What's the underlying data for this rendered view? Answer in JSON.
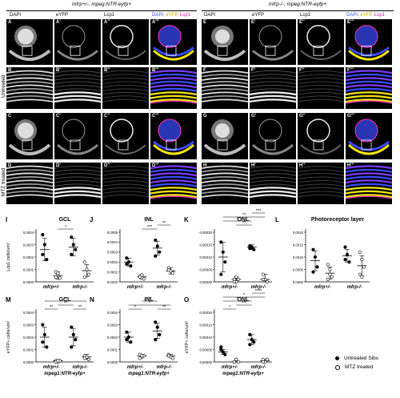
{
  "figure": {
    "genotype_left": "mfrp+/-; mpeg:NTR-eyfp+",
    "genotype_right": "mfrp-/-; mpeg:NTR-eyfp+",
    "column_headers": [
      "DAPI",
      "eYFP",
      "Lcp1",
      "DAPI, eYFP, Lcp1"
    ],
    "merge_label": {
      "dapi": "DAPI,",
      "eyfp": "eYFP,",
      "lcp1": "Lcp1"
    },
    "row_labels": {
      "untreated": "Untreated",
      "mtz": "MTZ treated"
    },
    "panel_labels": [
      [
        "A",
        "A'",
        "A''",
        "A'''",
        "E",
        "E'",
        "E''",
        "E'''"
      ],
      [
        "B",
        "B'",
        "B''",
        "B'''",
        "F",
        "F'",
        "F''",
        "F'''"
      ],
      [
        "C",
        "C'",
        "C''",
        "C'''",
        "G",
        "G'",
        "G''",
        "G'''"
      ],
      [
        "D",
        "D'",
        "D''",
        "D'''",
        "H",
        "H'",
        "H''",
        "H'''"
      ]
    ],
    "colors": {
      "dapi": "#3a4bff",
      "eyfp": "#f2e60a",
      "lcp1": "#ff33cc"
    }
  },
  "legend": {
    "filled": "Untreated Sibs",
    "open": "MTZ treated"
  },
  "chart_data": [
    {
      "id": "I",
      "type": "scatter",
      "title": "GCL",
      "ylabel": "Lcp1 cells/um²",
      "yticks": [
        "0.0000",
        "0.0001",
        "0.0002",
        "0.0003",
        "0.0004"
      ],
      "ylim": [
        0,
        0.0004
      ],
      "categories": [
        "mfrp+/-",
        "mfrp-/-"
      ],
      "series": [
        {
          "group": 0,
          "filled": true,
          "points": [
            0.00038,
            0.0003,
            0.00018,
            0.00022
          ],
          "mean": 0.00026,
          "sd": 9e-05
        },
        {
          "group": 0,
          "filled": false,
          "points": [
            8e-05,
            6e-05,
            3e-05,
            4e-05,
            7e-05
          ],
          "mean": 5e-05,
          "sd": 3e-05
        },
        {
          "group": 1,
          "filled": true,
          "points": [
            0.00036,
            0.0003,
            0.00026,
            0.00022
          ],
          "mean": 0.00028,
          "sd": 7e-05
        },
        {
          "group": 1,
          "filled": false,
          "points": [
            0.00016,
            0.0001,
            6e-05,
            4e-05
          ],
          "mean": 9e-05,
          "sd": 5e-05
        }
      ],
      "sig": [
        {
          "from": 1,
          "to": 2,
          "label": "*",
          "level": 0
        }
      ]
    },
    {
      "id": "J",
      "type": "scatter",
      "title": "INL",
      "ylabel": "",
      "yticks": [
        "0.0000",
        "0.0001",
        "0.0002",
        "0.0003",
        "0.0004",
        "0.0005"
      ],
      "ylim": [
        0,
        0.0005
      ],
      "categories": [
        "mfrp+/-",
        "mfrp-/-"
      ],
      "series": [
        {
          "group": 0,
          "filled": true,
          "points": [
            0.00024,
            0.0002,
            0.00016,
            0.00018
          ],
          "mean": 0.0002,
          "sd": 4e-05
        },
        {
          "group": 0,
          "filled": false,
          "points": [
            6e-05,
            4e-05,
            3e-05,
            5e-05,
            7e-05
          ],
          "mean": 5e-05,
          "sd": 2e-05
        },
        {
          "group": 1,
          "filled": true,
          "points": [
            0.00042,
            0.00036,
            0.0003,
            0.00026
          ],
          "mean": 0.00034,
          "sd": 7e-05
        },
        {
          "group": 1,
          "filled": false,
          "points": [
            0.00014,
            0.00011,
            9e-05,
            0.00012
          ],
          "mean": 0.00011,
          "sd": 3e-05
        }
      ],
      "sig": [
        {
          "from": 1,
          "to": 2,
          "label": "***",
          "level": 0
        },
        {
          "from": 2,
          "to": 3,
          "label": "**",
          "level": 1
        }
      ]
    },
    {
      "id": "K",
      "type": "scatter",
      "title": "ONL",
      "ylabel": "",
      "yticks": [
        "0.00000",
        "0.00005",
        "0.00010",
        "0.00015",
        "0.00020"
      ],
      "ylim": [
        0,
        0.0002
      ],
      "categories": [
        "mfrp+/-",
        "mfrp-/-"
      ],
      "series": [
        {
          "group": 0,
          "filled": true,
          "points": [
            0.00016,
            0.00012,
            8e-05,
            3e-05
          ],
          "mean": 0.0001,
          "sd": 6e-05
        },
        {
          "group": 0,
          "filled": false,
          "points": [
            1e-05,
            0.0,
            1e-05,
            0.0,
            2e-05
          ],
          "mean": 1e-05,
          "sd": 1e-05
        },
        {
          "group": 1,
          "filled": true,
          "points": [
            0.000145,
            0.00014,
            0.00013,
            0.000135
          ],
          "mean": 0.00014,
          "sd": 1e-05
        },
        {
          "group": 1,
          "filled": false,
          "points": [
            3e-05,
            1e-05,
            0.0,
            1e-05
          ],
          "mean": 1e-05,
          "sd": 2e-05
        }
      ],
      "sig": [
        {
          "from": 0,
          "to": 2,
          "label": "*",
          "level": 2
        },
        {
          "from": 0,
          "to": 3,
          "label": "**",
          "level": 3
        },
        {
          "from": 1,
          "to": 2,
          "label": "**",
          "level": 1
        },
        {
          "from": 2,
          "to": 3,
          "label": "***",
          "level": 4
        }
      ]
    },
    {
      "id": "L",
      "type": "scatter",
      "title": "Photoreceptor layer",
      "ylabel": "",
      "yticks": [
        "0.0000",
        "0.0005",
        "0.0010",
        "0.0015",
        "0.0020"
      ],
      "ylim": [
        0,
        0.002
      ],
      "categories": [
        "mfrp+/-",
        "mfrp-/-"
      ],
      "series": [
        {
          "group": 0,
          "filled": true,
          "points": [
            0.0013,
            0.001,
            0.0006,
            0.0004
          ],
          "mean": 0.00085,
          "sd": 0.0004
        },
        {
          "group": 0,
          "filled": false,
          "points": [
            0.0007,
            0.0005,
            0.0002,
            0.0001,
            0.0003
          ],
          "mean": 0.00035,
          "sd": 0.00025
        },
        {
          "group": 1,
          "filled": true,
          "points": [
            0.0014,
            0.0011,
            0.0008,
            0.0009
          ],
          "mean": 0.00105,
          "sd": 0.00025
        },
        {
          "group": 1,
          "filled": false,
          "points": [
            0.0012,
            0.0009,
            0.0006,
            0.0003,
            0.0002
          ],
          "mean": 0.00065,
          "sd": 0.0004
        }
      ],
      "sig": []
    },
    {
      "id": "M",
      "type": "scatter",
      "title": "GCL",
      "ylabel": "eYFP+ cells/um²",
      "yticks": [
        "0.0000",
        "0.0001",
        "0.0002",
        "0.0003",
        "0.0004"
      ],
      "ylim": [
        0,
        0.0004
      ],
      "categories": [
        "mfrp+/-",
        "mfrp-/-"
      ],
      "xsub": "mpeg1:NTR-eyfp+",
      "series": [
        {
          "group": 0,
          "filled": true,
          "points": [
            0.0003,
            0.00022,
            0.00012,
            0.00016
          ],
          "mean": 0.0002,
          "sd": 8e-05
        },
        {
          "group": 0,
          "filled": false,
          "points": [
            1e-05,
            0.0,
            1e-05,
            0.0,
            1e-05
          ],
          "mean": 1e-05,
          "sd": 1e-05
        },
        {
          "group": 1,
          "filled": true,
          "points": [
            0.00028,
            0.00022,
            0.00018,
            0.00012
          ],
          "mean": 0.0002,
          "sd": 7e-05
        },
        {
          "group": 1,
          "filled": false,
          "points": [
            5e-05,
            4e-05,
            2e-05,
            3e-05
          ],
          "mean": 4e-05,
          "sd": 2e-05
        }
      ],
      "sig": [
        {
          "from": 0,
          "to": 1,
          "label": "**",
          "level": 0
        },
        {
          "from": 0,
          "to": 3,
          "label": "**",
          "level": 2
        },
        {
          "from": 1,
          "to": 2,
          "label": "**",
          "level": 1
        },
        {
          "from": 2,
          "to": 3,
          "label": "**",
          "level": 0
        }
      ]
    },
    {
      "id": "N",
      "type": "scatter",
      "title": "INL",
      "ylabel": "",
      "yticks": [
        "0.0000",
        "0.0001",
        "0.0002",
        "0.0003",
        "0.0004"
      ],
      "ylim": [
        0,
        0.0004
      ],
      "categories": [
        "mfrp+/-",
        "mfrp-/-"
      ],
      "xsub": "mpeg1:NTR-eyfp+",
      "series": [
        {
          "group": 0,
          "filled": true,
          "points": [
            0.00024,
            0.0002,
            0.00016,
            0.00018
          ],
          "mean": 0.0002,
          "sd": 4e-05
        },
        {
          "group": 0,
          "filled": false,
          "points": [
            6e-05,
            4e-05,
            5e-05,
            3e-05,
            5e-05
          ],
          "mean": 5e-05,
          "sd": 1e-05
        },
        {
          "group": 1,
          "filled": true,
          "points": [
            0.00032,
            0.00028,
            0.00022,
            0.00018
          ],
          "mean": 0.00025,
          "sd": 6e-05
        },
        {
          "group": 1,
          "filled": false,
          "points": [
            6e-05,
            4e-05,
            3e-05,
            5e-05
          ],
          "mean": 5e-05,
          "sd": 1e-05
        }
      ],
      "sig": [
        {
          "from": 0,
          "to": 1,
          "label": "*",
          "level": 0
        },
        {
          "from": 0,
          "to": 3,
          "label": "*",
          "level": 1
        },
        {
          "from": 1,
          "to": 2,
          "label": "**",
          "level": 2
        },
        {
          "from": 2,
          "to": 3,
          "label": "**",
          "level": 0
        }
      ]
    },
    {
      "id": "O",
      "type": "scatter",
      "title": "ONL",
      "ylabel": "eYFP+ cells/um²",
      "yticks": [
        "0.00000",
        "0.00005",
        "0.00010",
        "0.00015",
        "0.00020"
      ],
      "ylim": [
        0,
        0.0002
      ],
      "categories": [
        "mfrp+/-",
        "mfrp-/-"
      ],
      "xsub": "mpeg1:NTR-eyfp+",
      "series": [
        {
          "group": 0,
          "filled": true,
          "points": [
            6e-05,
            4e-05,
            3e-05,
            5e-05
          ],
          "mean": 4e-05,
          "sd": 1e-05
        },
        {
          "group": 0,
          "filled": false,
          "points": [
            0.0,
            1e-05,
            0.0,
            0.0,
            1e-05
          ],
          "mean": 0.0,
          "sd": 5e-06
        },
        {
          "group": 1,
          "filled": true,
          "points": [
            0.00011,
            9e-05,
            8e-05,
            7e-05
          ],
          "mean": 9e-05,
          "sd": 2e-05
        },
        {
          "group": 1,
          "filled": false,
          "points": [
            1e-05,
            0.0,
            1e-05,
            0.0
          ],
          "mean": 5e-06,
          "sd": 5e-06
        }
      ],
      "sig": [
        {
          "from": 0,
          "to": 1,
          "label": "*",
          "level": 0
        },
        {
          "from": 0,
          "to": 2,
          "label": "*",
          "level": 2
        },
        {
          "from": 0,
          "to": 3,
          "label": "*",
          "level": 3
        },
        {
          "from": 1,
          "to": 2,
          "label": "***",
          "level": 1
        },
        {
          "from": 2,
          "to": 3,
          "label": "****",
          "level": 4
        }
      ]
    }
  ]
}
